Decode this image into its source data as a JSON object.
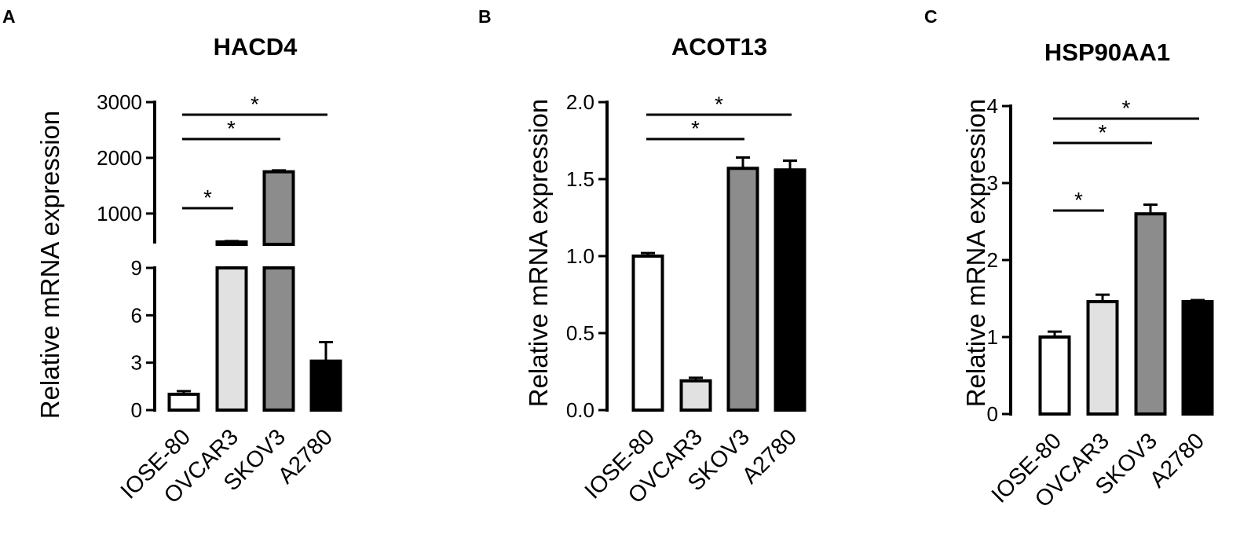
{
  "chart_data": [
    {
      "panel": "A",
      "type": "bar",
      "title": "HACD4",
      "ylabel": "Relative mRNA expression",
      "categories": [
        "IOSE-80",
        "OVCAR3",
        "SKOV3",
        "A2780"
      ],
      "values": [
        1.0,
        490,
        1750,
        3.1
      ],
      "errors": [
        0.2,
        15,
        25,
        1.2
      ],
      "colors": [
        "#ffffff",
        "#e1e1e1",
        "#8c8c8c",
        "#000000"
      ],
      "broken_axis": true,
      "segments": [
        {
          "range": [
            0,
            9
          ],
          "ticks": [
            0,
            3,
            6,
            9
          ]
        },
        {
          "range": [
            490,
            3000
          ],
          "ticks": [
            1000,
            2000,
            3000
          ]
        }
      ],
      "significance": [
        {
          "from": 0,
          "to": 1,
          "label": "*"
        },
        {
          "from": 0,
          "to": 2,
          "label": "*"
        },
        {
          "from": 0,
          "to": 3,
          "label": "*"
        }
      ],
      "grid": false,
      "legend": "none"
    },
    {
      "panel": "B",
      "type": "bar",
      "title": "ACOT13",
      "ylabel": "Relative mRNA expression",
      "categories": [
        "IOSE-80",
        "OVCAR3",
        "SKOV3",
        "A2780"
      ],
      "values": [
        1.0,
        0.19,
        1.57,
        1.56
      ],
      "errors": [
        0.02,
        0.02,
        0.07,
        0.06
      ],
      "colors": [
        "#ffffff",
        "#e1e1e1",
        "#8c8c8c",
        "#000000"
      ],
      "ylim": [
        0,
        2.0
      ],
      "ticks": [
        "0.0",
        "0.5",
        "1.0",
        "1.5",
        "2.0"
      ],
      "significance": [
        {
          "from": 0,
          "to": 2,
          "label": "*"
        },
        {
          "from": 0,
          "to": 3,
          "label": "*"
        }
      ],
      "grid": false,
      "legend": "none"
    },
    {
      "panel": "C",
      "type": "bar",
      "title": "HSP90AA1",
      "ylabel": "Relative mRNA expression",
      "categories": [
        "IOSE-80",
        "OVCAR3",
        "SKOV3",
        "A2780"
      ],
      "values": [
        1.0,
        1.46,
        2.6,
        1.46
      ],
      "errors": [
        0.07,
        0.09,
        0.12,
        0.02
      ],
      "colors": [
        "#ffffff",
        "#e1e1e1",
        "#8c8c8c",
        "#000000"
      ],
      "ylim": [
        0,
        4
      ],
      "ticks": [
        "0",
        "1",
        "2",
        "3",
        "4"
      ],
      "significance": [
        {
          "from": 0,
          "to": 1,
          "label": "*"
        },
        {
          "from": 0,
          "to": 2,
          "label": "*"
        },
        {
          "from": 0,
          "to": 3,
          "label": "*"
        }
      ],
      "grid": false,
      "legend": "none"
    }
  ]
}
